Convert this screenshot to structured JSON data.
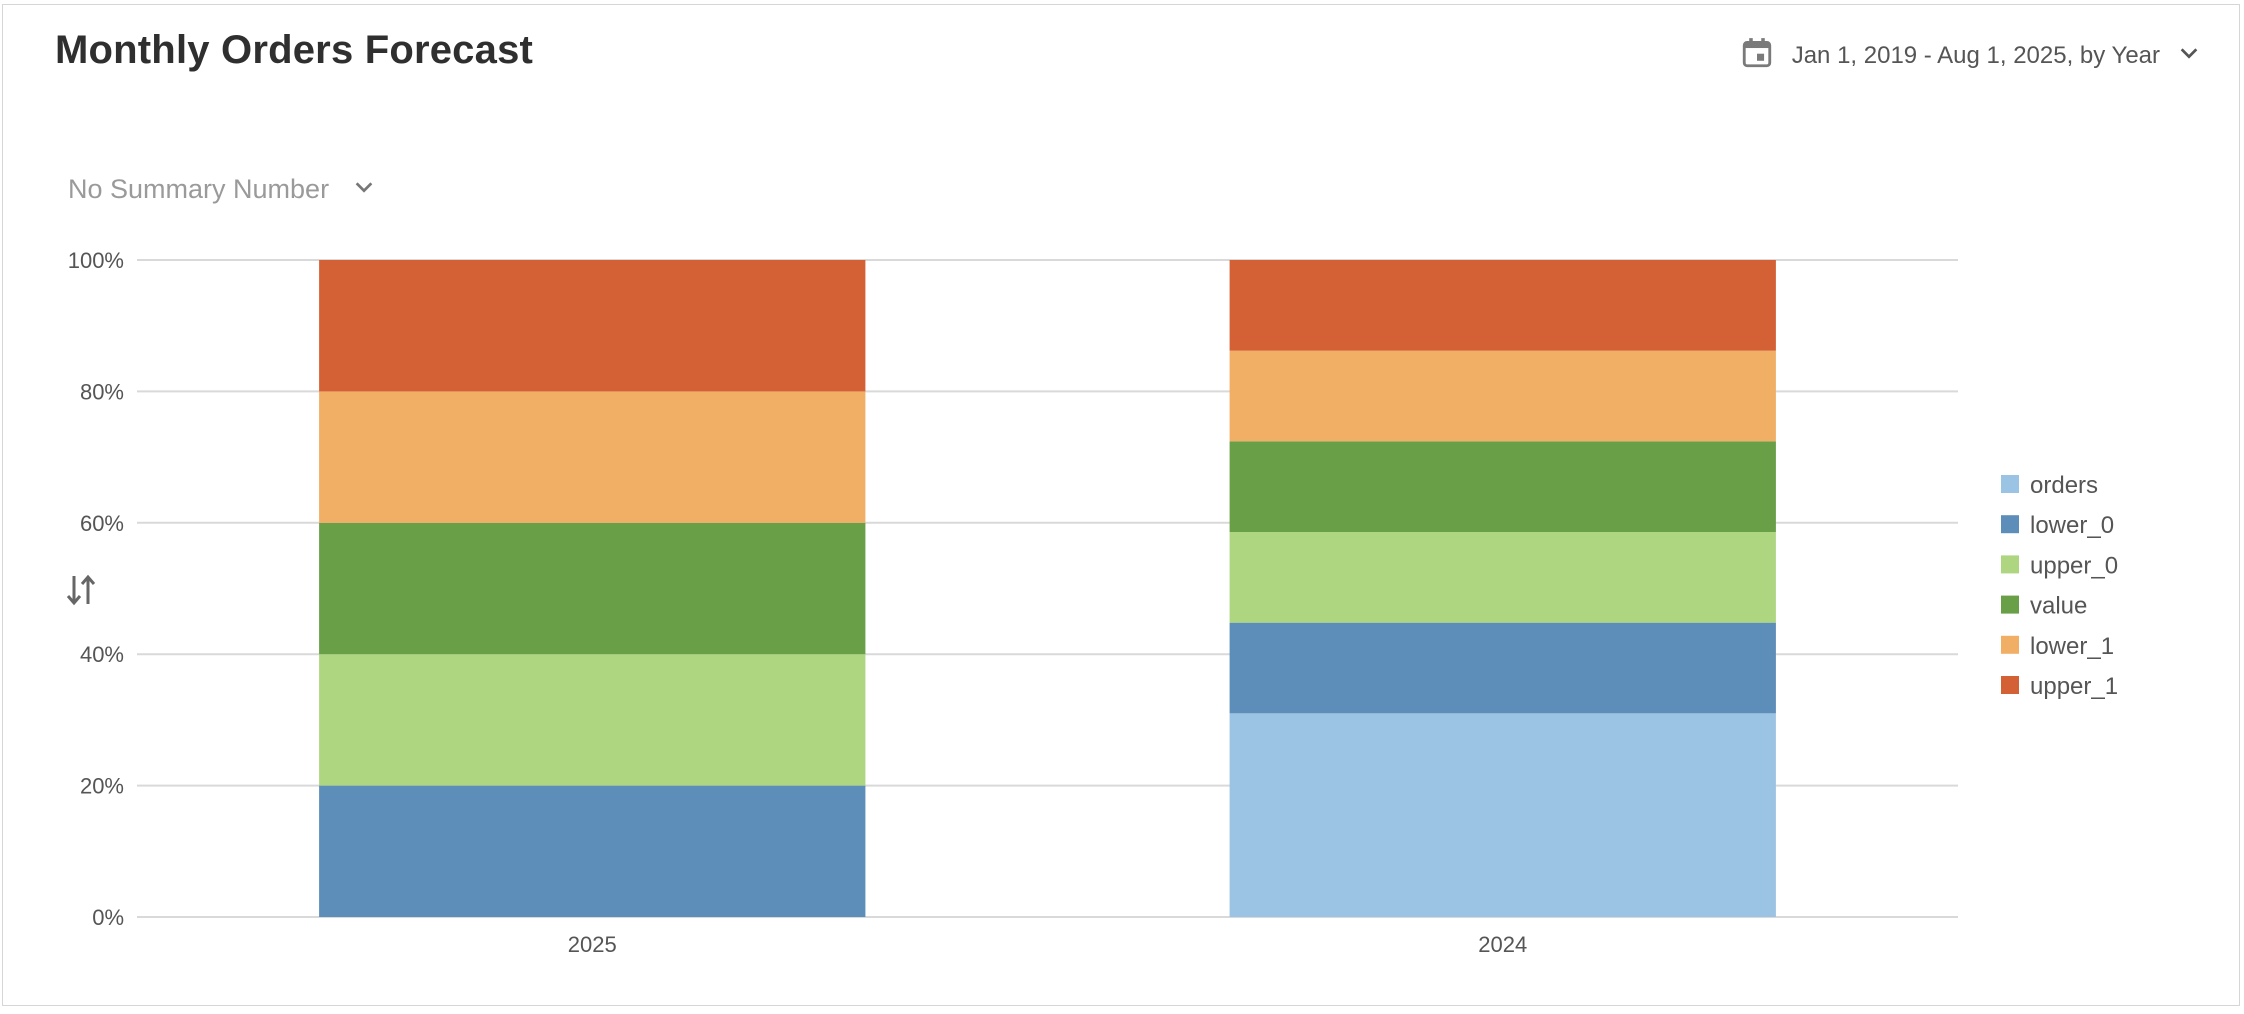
{
  "header": {
    "title": "Monthly Orders Forecast",
    "date_range": "Jan 1, 2019 - Aug 1, 2025, by Year",
    "calendar_icon": "calendar-icon",
    "dropdown_icon": "chevron-down-icon"
  },
  "summary": {
    "label": "No Summary Number",
    "dropdown_icon": "chevron-down-icon"
  },
  "sort_icon": "sort-arrows-icon",
  "colors": {
    "orders": "#9bc3e3",
    "lower_0": "#5d8db9",
    "upper_0": "#aed57f",
    "value": "#689f47",
    "lower_1": "#f1ae65",
    "upper_1": "#d46035",
    "grid": "#d9d9d9",
    "axis_text": "#555555"
  },
  "chart_data": {
    "type": "bar",
    "stacked": true,
    "normalized": true,
    "categories": [
      "2025",
      "2024"
    ],
    "series": [
      {
        "name": "orders",
        "values": [
          0,
          31
        ]
      },
      {
        "name": "lower_0",
        "values": [
          20,
          13.8
        ]
      },
      {
        "name": "upper_0",
        "values": [
          20,
          13.8
        ]
      },
      {
        "name": "value",
        "values": [
          20,
          13.8
        ]
      },
      {
        "name": "lower_1",
        "values": [
          20,
          13.8
        ]
      },
      {
        "name": "upper_1",
        "values": [
          20,
          13.8
        ]
      }
    ],
    "y_ticks": [
      "0%",
      "20%",
      "40%",
      "60%",
      "80%",
      "100%"
    ],
    "ylim": [
      0,
      100
    ],
    "grid": true,
    "legend_position": "right",
    "title": "",
    "xlabel": "",
    "ylabel": ""
  }
}
